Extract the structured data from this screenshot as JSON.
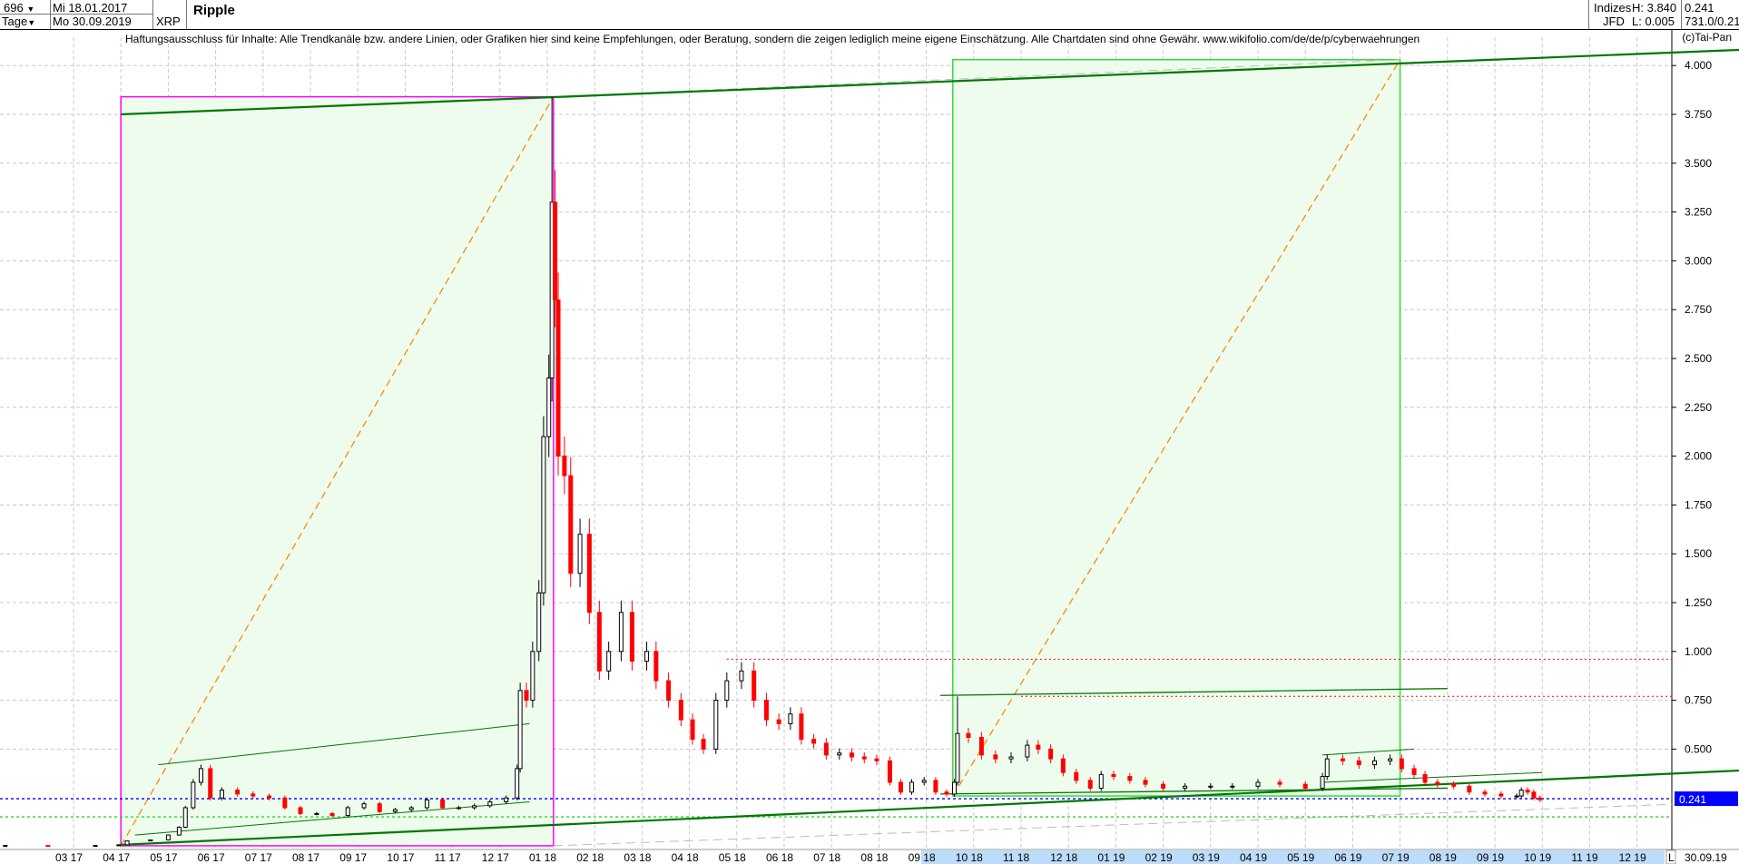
{
  "header": {
    "bars_count": "696",
    "interval": "Tage",
    "start_date": "Mi 18.01.2017",
    "end_date": "Mo 30.09.2019",
    "symbol": "XRP",
    "title": "Ripple",
    "group": "Indizes",
    "source": "JFD",
    "high": "H: 3.840",
    "low": "L: 0.005",
    "last": "0.241",
    "ratio": "731.0/0.21"
  },
  "disclaimer": "Haftungsausschluss für Inhalte: Alle Trendkanäle bzw. andere Linien, oder Grafiken hier sind keine Empfehlungen, oder Beratung, sondern die zeigen lediglich meine eigene Einschätzung. Alle Chartdaten sind ohne Gewähr.  www.wikifolio.com/de/de/p/cyberwaehrungen",
  "copyright": "(c)Tai-Pan",
  "footer": {
    "mode": "L",
    "date": "30.09.19"
  },
  "colors": {
    "up": "#000000",
    "down": "#ff0000",
    "box1": "#ff00ff",
    "box2": "#33dd33",
    "fill": "#eefcee",
    "trend": "#007700",
    "fib": "#ff8800",
    "last_line": "#0000ff",
    "resistance": "#ff0000"
  },
  "chart_data": {
    "type": "candlestick",
    "ylim": [
      0,
      4.1
    ],
    "yticks": [
      "0.500",
      "0.750",
      "1.000",
      "1.250",
      "1.500",
      "1.750",
      "2.000",
      "2.250",
      "2.500",
      "2.750",
      "3.000",
      "3.250",
      "3.500",
      "3.750",
      "4.000"
    ],
    "xticks": [
      "03 17",
      "04 17",
      "05 17",
      "06 17",
      "07 17",
      "08 17",
      "09 17",
      "10 17",
      "11 17",
      "12 17",
      "01 18",
      "02 18",
      "03 18",
      "04 18",
      "05 18",
      "06 18",
      "07 18",
      "08 18",
      "09 18",
      "10 18",
      "11 18",
      "12 18",
      "01 19",
      "02 19",
      "03 19",
      "04 19",
      "05 19",
      "06 19",
      "07 19",
      "08 19",
      "09 19",
      "10 19",
      "11 19",
      "12 19"
    ],
    "last_value": "0.241",
    "horizontal_levels": {
      "resistance": [
        0.96,
        0.77
      ],
      "last": 0.241,
      "support": 0.15
    },
    "highs": {
      "2018-01-04": 3.84,
      "2018-09-21": 0.77
    },
    "dates": [
      "2017-01-18",
      "2017-02-15",
      "2017-03-15",
      "2017-03-30",
      "2017-04-05",
      "2017-04-20",
      "2017-05-01",
      "2017-05-08",
      "2017-05-12",
      "2017-05-17",
      "2017-05-22",
      "2017-05-28",
      "2017-06-05",
      "2017-06-15",
      "2017-06-25",
      "2017-07-05",
      "2017-07-15",
      "2017-07-25",
      "2017-08-05",
      "2017-08-15",
      "2017-08-25",
      "2017-09-05",
      "2017-09-15",
      "2017-09-25",
      "2017-10-05",
      "2017-10-15",
      "2017-10-25",
      "2017-11-05",
      "2017-11-15",
      "2017-11-25",
      "2017-12-05",
      "2017-12-12",
      "2017-12-14",
      "2017-12-18",
      "2017-12-22",
      "2017-12-26",
      "2017-12-29",
      "2018-01-02",
      "2018-01-04",
      "2018-01-06",
      "2018-01-08",
      "2018-01-12",
      "2018-01-16",
      "2018-01-22",
      "2018-01-28",
      "2018-02-04",
      "2018-02-10",
      "2018-02-18",
      "2018-02-25",
      "2018-03-04",
      "2018-03-10",
      "2018-03-18",
      "2018-03-26",
      "2018-04-03",
      "2018-04-10",
      "2018-04-18",
      "2018-04-25",
      "2018-05-04",
      "2018-05-12",
      "2018-05-20",
      "2018-05-28",
      "2018-06-05",
      "2018-06-12",
      "2018-06-20",
      "2018-06-28",
      "2018-07-06",
      "2018-07-14",
      "2018-07-22",
      "2018-07-30",
      "2018-08-08",
      "2018-08-15",
      "2018-08-22",
      "2018-08-30",
      "2018-09-07",
      "2018-09-14",
      "2018-09-19",
      "2018-09-21",
      "2018-09-28",
      "2018-10-06",
      "2018-10-15",
      "2018-10-25",
      "2018-11-05",
      "2018-11-12",
      "2018-11-20",
      "2018-11-28",
      "2018-12-06",
      "2018-12-15",
      "2018-12-22",
      "2018-12-30",
      "2019-01-10",
      "2019-01-20",
      "2019-02-01",
      "2019-02-15",
      "2019-03-01",
      "2019-03-15",
      "2019-04-01",
      "2019-04-15",
      "2019-05-01",
      "2019-05-12",
      "2019-05-15",
      "2019-05-25",
      "2019-06-05",
      "2019-06-15",
      "2019-06-25",
      "2019-07-02",
      "2019-07-10",
      "2019-07-17",
      "2019-07-25",
      "2019-08-05",
      "2019-08-15",
      "2019-08-25",
      "2019-09-05",
      "2019-09-15",
      "2019-09-18",
      "2019-09-22",
      "2019-09-26",
      "2019-09-30"
    ],
    "close": [
      0.007,
      0.006,
      0.007,
      0.01,
      0.03,
      0.035,
      0.06,
      0.1,
      0.2,
      0.33,
      0.4,
      0.25,
      0.29,
      0.27,
      0.26,
      0.25,
      0.2,
      0.17,
      0.17,
      0.16,
      0.2,
      0.22,
      0.18,
      0.19,
      0.2,
      0.24,
      0.2,
      0.2,
      0.21,
      0.23,
      0.25,
      0.4,
      0.8,
      0.75,
      1.0,
      1.3,
      2.1,
      2.4,
      3.3,
      2.8,
      2.0,
      1.9,
      1.4,
      1.6,
      1.2,
      0.9,
      1.0,
      1.2,
      0.95,
      1.0,
      0.85,
      0.75,
      0.65,
      0.55,
      0.5,
      0.75,
      0.85,
      0.9,
      0.75,
      0.65,
      0.63,
      0.68,
      0.55,
      0.53,
      0.47,
      0.48,
      0.46,
      0.45,
      0.44,
      0.33,
      0.28,
      0.33,
      0.34,
      0.28,
      0.27,
      0.33,
      0.58,
      0.56,
      0.47,
      0.45,
      0.46,
      0.52,
      0.5,
      0.45,
      0.38,
      0.34,
      0.3,
      0.37,
      0.36,
      0.34,
      0.32,
      0.3,
      0.31,
      0.31,
      0.31,
      0.33,
      0.32,
      0.3,
      0.36,
      0.45,
      0.44,
      0.42,
      0.44,
      0.45,
      0.4,
      0.37,
      0.33,
      0.32,
      0.31,
      0.28,
      0.27,
      0.26,
      0.26,
      0.29,
      0.28,
      0.25,
      0.241
    ]
  }
}
